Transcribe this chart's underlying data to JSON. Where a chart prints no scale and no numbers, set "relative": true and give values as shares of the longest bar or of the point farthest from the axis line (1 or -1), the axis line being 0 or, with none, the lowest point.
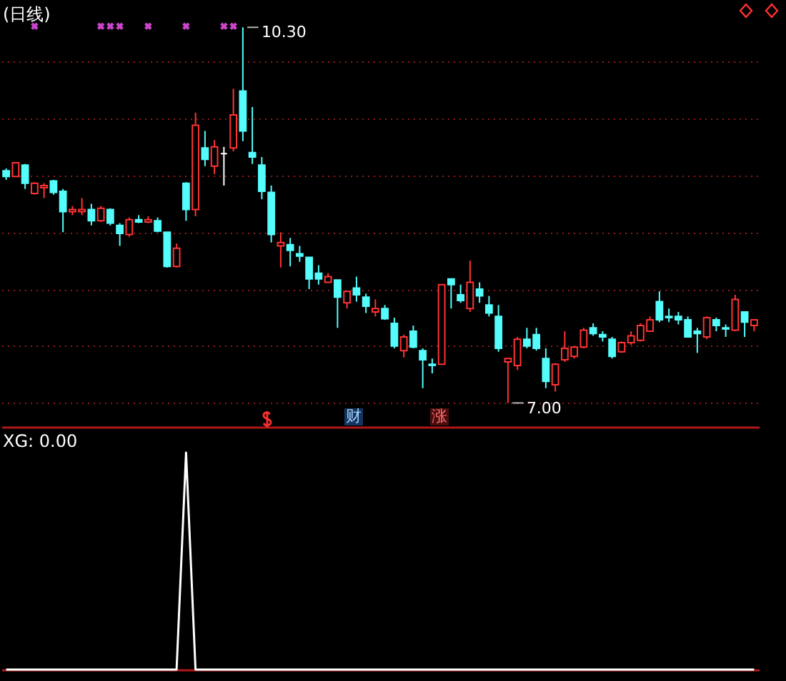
{
  "chart_data": [
    {
      "type": "candlestick",
      "title": "(日线)",
      "categories": [
        null,
        null,
        null,
        null,
        null,
        null,
        null,
        null,
        null,
        null,
        null,
        null,
        null,
        null,
        null,
        null,
        null,
        null,
        null,
        null,
        null,
        null,
        null,
        null,
        null,
        null,
        null,
        null,
        null,
        null,
        null,
        null,
        null,
        null,
        null,
        null,
        null,
        null,
        null,
        null,
        null,
        null,
        null,
        null,
        null,
        null,
        null,
        null,
        null,
        null,
        null,
        null,
        null,
        null,
        null,
        null,
        null,
        null,
        null,
        null,
        null,
        null,
        null,
        null,
        null,
        null,
        null,
        null,
        null,
        null,
        null,
        null,
        null,
        null,
        null,
        null,
        null,
        null,
        null,
        null
      ],
      "ohlc": [
        [
          9.04,
          9.06,
          8.96,
          8.99
        ],
        [
          8.99,
          9.11,
          8.99,
          9.11
        ],
        [
          9.09,
          9.1,
          8.88,
          8.93
        ],
        [
          8.84,
          8.94,
          8.83,
          8.93
        ],
        [
          8.89,
          8.93,
          8.8,
          8.91
        ],
        [
          8.95,
          8.96,
          8.83,
          8.85
        ],
        [
          8.86,
          8.88,
          8.5,
          8.68
        ],
        [
          8.68,
          8.73,
          8.65,
          8.7
        ],
        [
          8.68,
          8.8,
          8.65,
          8.7
        ],
        [
          8.7,
          8.75,
          8.56,
          8.6
        ],
        [
          8.6,
          8.73,
          8.59,
          8.71
        ],
        [
          8.7,
          8.71,
          8.56,
          8.58
        ],
        [
          8.56,
          8.58,
          8.38,
          8.49
        ],
        [
          8.48,
          8.63,
          8.46,
          8.61
        ],
        [
          8.61,
          8.65,
          8.58,
          8.59
        ],
        [
          8.59,
          8.64,
          8.58,
          8.61
        ],
        [
          8.6,
          8.63,
          8.5,
          8.51
        ],
        [
          8.5,
          8.5,
          8.19,
          8.2
        ],
        [
          8.2,
          8.4,
          8.19,
          8.36
        ],
        [
          8.93,
          8.94,
          8.6,
          8.7
        ],
        [
          8.7,
          9.55,
          8.64,
          9.44
        ],
        [
          9.24,
          9.39,
          9.08,
          9.14
        ],
        [
          9.08,
          9.31,
          9.01,
          9.25
        ],
        [
          9.19,
          9.25,
          8.91,
          9.19
        ],
        [
          9.24,
          9.76,
          9.21,
          9.53
        ],
        [
          9.74,
          10.3,
          9.3,
          9.39
        ],
        [
          9.2,
          9.6,
          9.1,
          9.16
        ],
        [
          9.09,
          9.16,
          8.79,
          8.86
        ],
        [
          8.85,
          8.91,
          8.41,
          8.48
        ],
        [
          8.38,
          8.5,
          8.19,
          8.41
        ],
        [
          8.39,
          8.45,
          8.2,
          8.34
        ],
        [
          8.31,
          8.38,
          8.24,
          8.29
        ],
        [
          8.28,
          8.28,
          8.0,
          8.09
        ],
        [
          8.14,
          8.21,
          8.04,
          8.09
        ],
        [
          8.06,
          8.14,
          8.06,
          8.11
        ],
        [
          8.08,
          8.08,
          7.66,
          7.93
        ],
        [
          7.88,
          7.98,
          7.83,
          7.98
        ],
        [
          8.01,
          8.11,
          7.89,
          7.95
        ],
        [
          7.93,
          7.96,
          7.79,
          7.85
        ],
        [
          7.8,
          7.91,
          7.76,
          7.83
        ],
        [
          7.83,
          7.86,
          7.73,
          7.74
        ],
        [
          7.7,
          7.75,
          7.48,
          7.5
        ],
        [
          7.46,
          7.6,
          7.4,
          7.58
        ],
        [
          7.63,
          7.68,
          7.48,
          7.49
        ],
        [
          7.46,
          7.48,
          7.13,
          7.38
        ],
        [
          7.34,
          7.39,
          7.26,
          7.33
        ],
        [
          7.34,
          8.04,
          7.34,
          8.04
        ],
        [
          8.09,
          8.09,
          7.83,
          8.04
        ],
        [
          7.95,
          8.04,
          7.88,
          7.9
        ],
        [
          7.83,
          8.25,
          7.8,
          8.06
        ],
        [
          8.0,
          8.06,
          7.88,
          7.94
        ],
        [
          7.86,
          7.94,
          7.76,
          7.79
        ],
        [
          7.76,
          7.86,
          7.45,
          7.48
        ],
        [
          7.36,
          7.39,
          7.0,
          7.39
        ],
        [
          7.33,
          7.58,
          7.29,
          7.56
        ],
        [
          7.56,
          7.66,
          7.48,
          7.5
        ],
        [
          7.6,
          7.66,
          7.46,
          7.48
        ],
        [
          7.39,
          7.48,
          7.13,
          7.19
        ],
        [
          7.16,
          7.35,
          7.1,
          7.34
        ],
        [
          7.38,
          7.63,
          7.36,
          7.48
        ],
        [
          7.41,
          7.5,
          7.39,
          7.49
        ],
        [
          7.49,
          7.66,
          7.48,
          7.64
        ],
        [
          7.66,
          7.7,
          7.59,
          7.61
        ],
        [
          7.6,
          7.63,
          7.54,
          7.58
        ],
        [
          7.56,
          7.58,
          7.39,
          7.41
        ],
        [
          7.45,
          7.54,
          7.44,
          7.53
        ],
        [
          7.53,
          7.63,
          7.51,
          7.59
        ],
        [
          7.55,
          7.7,
          7.54,
          7.68
        ],
        [
          7.63,
          7.76,
          7.63,
          7.73
        ],
        [
          7.89,
          7.98,
          7.71,
          7.73
        ],
        [
          7.76,
          7.83,
          7.71,
          7.75
        ],
        [
          7.76,
          7.8,
          7.69,
          7.73
        ],
        [
          7.73,
          7.76,
          7.58,
          7.58
        ],
        [
          7.63,
          7.66,
          7.44,
          7.61
        ],
        [
          7.58,
          7.76,
          7.56,
          7.75
        ],
        [
          7.73,
          7.75,
          7.63,
          7.68
        ],
        [
          7.66,
          7.69,
          7.58,
          7.65
        ],
        [
          7.64,
          7.95,
          7.63,
          7.91
        ],
        [
          7.8,
          7.8,
          7.58,
          7.71
        ],
        [
          7.68,
          7.73,
          7.63,
          7.73
        ]
      ],
      "colors": [
        "#54fcfc",
        "#ff3333",
        "#54fcfc",
        "#ff3333",
        "#ff3333",
        "#54fcfc",
        "#54fcfc",
        "#ff3333",
        "#ff3333",
        "#54fcfc",
        "#ff3333",
        "#54fcfc",
        "#54fcfc",
        "#ff3333",
        "#54fcfc",
        "#ff3333",
        "#54fcfc",
        "#54fcfc",
        "#ff3333",
        "#54fcfc",
        "#ff3333",
        "#54fcfc",
        "#ff3333",
        "#ffffff",
        "#ff3333",
        "#54fcfc",
        "#54fcfc",
        "#54fcfc",
        "#54fcfc",
        "#ff3333",
        "#54fcfc",
        "#54fcfc",
        "#54fcfc",
        "#54fcfc",
        "#ff3333",
        "#54fcfc",
        "#ff3333",
        "#54fcfc",
        "#54fcfc",
        "#ff3333",
        "#54fcfc",
        "#54fcfc",
        "#ff3333",
        "#54fcfc",
        "#54fcfc",
        "#54fcfc",
        "#ff3333",
        "#54fcfc",
        "#54fcfc",
        "#ff3333",
        "#54fcfc",
        "#54fcfc",
        "#54fcfc",
        "#ff3333",
        "#ff3333",
        "#54fcfc",
        "#54fcfc",
        "#54fcfc",
        "#ff3333",
        "#ff3333",
        "#ff3333",
        "#ff3333",
        "#54fcfc",
        "#54fcfc",
        "#54fcfc",
        "#ff3333",
        "#ff3333",
        "#ff3333",
        "#ff3333",
        "#54fcfc",
        "#54fcfc",
        "#54fcfc",
        "#54fcfc",
        "#54fcfc",
        "#ff3333",
        "#54fcfc",
        "#54fcfc",
        "#ff3333",
        "#54fcfc",
        "#ff3333"
      ],
      "series": [
        {
          "type": "scatter",
          "color": "#cc44cc",
          "values": [
            null,
            null,
            null,
            10.31,
            null,
            null,
            null,
            null,
            null,
            null,
            10.31,
            10.31,
            10.31,
            null,
            null,
            10.31,
            null,
            null,
            null,
            10.31,
            null,
            null,
            null,
            10.31,
            10.31,
            null,
            null,
            null,
            null,
            null,
            null,
            null,
            null,
            null,
            null,
            null,
            null,
            null,
            null,
            null,
            null,
            null,
            null,
            null,
            null,
            null,
            null,
            null,
            null,
            null,
            null,
            null,
            null,
            null,
            null,
            null,
            null,
            null,
            null,
            null,
            null,
            null,
            null,
            null,
            null,
            null,
            null,
            null,
            null,
            null,
            null,
            null,
            null,
            null,
            null,
            null,
            null,
            null,
            null,
            null
          ]
        }
      ],
      "marker": "cross",
      "ylim": [
        6.79,
        10.54
      ],
      "yticks": [
        {
          "value": 7,
          "label": null
        },
        {
          "value": 7.5,
          "label": null
        },
        {
          "value": 8,
          "label": null
        },
        {
          "value": 8.5,
          "label": null
        },
        {
          "value": 9,
          "label": null
        },
        {
          "value": 9.5,
          "label": null
        },
        {
          "value": 10,
          "label": null
        }
      ],
      "grid": "y",
      "annotations": [
        "10.30",
        "7.00",
        "财",
        "涨"
      ]
    },
    {
      "type": "line",
      "title": "XG: 0.00",
      "relative": true,
      "categories": [
        null,
        null,
        null,
        null,
        null,
        null,
        null,
        null,
        null,
        null,
        null,
        null,
        null,
        null,
        null,
        null,
        null,
        null,
        null,
        null,
        null,
        null,
        null,
        null,
        null,
        null,
        null,
        null,
        null,
        null,
        null,
        null,
        null,
        null,
        null,
        null,
        null,
        null,
        null,
        null,
        null,
        null,
        null,
        null,
        null,
        null,
        null,
        null,
        null,
        null,
        null,
        null,
        null,
        null,
        null,
        null,
        null,
        null,
        null,
        null,
        null,
        null,
        null,
        null,
        null,
        null,
        null,
        null,
        null,
        null,
        null,
        null,
        null,
        null,
        null,
        null,
        null,
        null,
        null,
        null
      ],
      "series": [
        {
          "color": "#ffffff",
          "values": [
            0,
            0,
            0,
            0,
            0,
            0,
            0,
            0,
            0,
            0,
            0,
            0,
            0,
            0,
            0,
            0,
            0,
            0,
            0,
            1,
            0,
            0,
            0,
            0,
            0,
            0,
            0,
            0,
            0,
            0,
            0,
            0,
            0,
            0,
            0,
            0,
            0,
            0,
            0,
            0,
            0,
            0,
            0,
            0,
            0,
            0,
            0,
            0,
            0,
            0,
            0,
            0,
            0,
            0,
            0,
            0,
            0,
            0,
            0,
            0,
            0,
            0,
            0,
            0,
            0,
            0,
            0,
            0,
            0,
            0,
            0,
            0,
            0,
            0,
            0,
            0,
            0,
            0,
            0,
            0
          ]
        }
      ]
    }
  ]
}
